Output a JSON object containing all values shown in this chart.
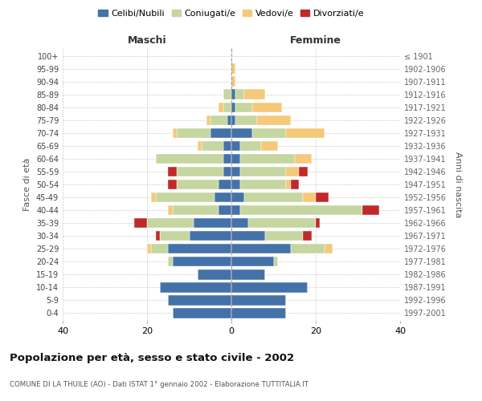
{
  "age_groups": [
    "0-4",
    "5-9",
    "10-14",
    "15-19",
    "20-24",
    "25-29",
    "30-34",
    "35-39",
    "40-44",
    "45-49",
    "50-54",
    "55-59",
    "60-64",
    "65-69",
    "70-74",
    "75-79",
    "80-84",
    "85-89",
    "90-94",
    "95-99",
    "100+"
  ],
  "year_labels": [
    "1997-2001",
    "1992-1996",
    "1987-1991",
    "1982-1986",
    "1977-1981",
    "1972-1976",
    "1967-1971",
    "1962-1966",
    "1957-1961",
    "1952-1956",
    "1947-1951",
    "1942-1946",
    "1937-1941",
    "1932-1936",
    "1927-1931",
    "1922-1926",
    "1917-1921",
    "1912-1916",
    "1907-1911",
    "1902-1906",
    "≤ 1901"
  ],
  "maschi": {
    "celibi": [
      14,
      15,
      17,
      8,
      14,
      15,
      10,
      9,
      3,
      4,
      3,
      2,
      2,
      2,
      5,
      1,
      0,
      0,
      0,
      0,
      0
    ],
    "coniugati": [
      0,
      0,
      0,
      0,
      1,
      4,
      7,
      11,
      11,
      14,
      10,
      11,
      16,
      5,
      8,
      4,
      2,
      2,
      0,
      0,
      0
    ],
    "vedovi": [
      0,
      0,
      0,
      0,
      0,
      1,
      0,
      0,
      1,
      1,
      0,
      0,
      0,
      1,
      1,
      1,
      1,
      0,
      0,
      0,
      0
    ],
    "divorziati": [
      0,
      0,
      0,
      0,
      0,
      0,
      1,
      3,
      0,
      0,
      2,
      2,
      0,
      0,
      0,
      0,
      0,
      0,
      0,
      0,
      0
    ]
  },
  "femmine": {
    "nubili": [
      13,
      13,
      18,
      8,
      10,
      14,
      8,
      4,
      2,
      3,
      2,
      2,
      2,
      2,
      5,
      1,
      1,
      1,
      0,
      0,
      0
    ],
    "coniugate": [
      0,
      0,
      0,
      0,
      1,
      8,
      9,
      16,
      29,
      14,
      11,
      11,
      13,
      5,
      8,
      5,
      4,
      2,
      0,
      0,
      0
    ],
    "vedove": [
      0,
      0,
      0,
      0,
      0,
      2,
      0,
      0,
      0,
      3,
      1,
      3,
      4,
      4,
      9,
      8,
      7,
      5,
      1,
      1,
      0
    ],
    "divorziate": [
      0,
      0,
      0,
      0,
      0,
      0,
      2,
      1,
      4,
      3,
      2,
      2,
      0,
      0,
      0,
      0,
      0,
      0,
      0,
      0,
      0
    ]
  },
  "colors": {
    "celibi": "#4472a8",
    "coniugati": "#c5d6a0",
    "vedovi": "#f5c97a",
    "divorziati": "#c0292a"
  },
  "xlim": 40,
  "title": "Popolazione per età, sesso e stato civile - 2002",
  "subtitle": "COMUNE DI LA THUILE (AO) - Dati ISTAT 1° gennaio 2002 - Elaborazione TUTTITALIA.IT",
  "ylabel_left": "Fasce di età",
  "ylabel_right": "Anni di nascita",
  "xlabel_maschi": "Maschi",
  "xlabel_femmine": "Femmine",
  "legend_labels": [
    "Celibi/Nubili",
    "Coniugati/e",
    "Vedovi/e",
    "Divorziati/e"
  ]
}
